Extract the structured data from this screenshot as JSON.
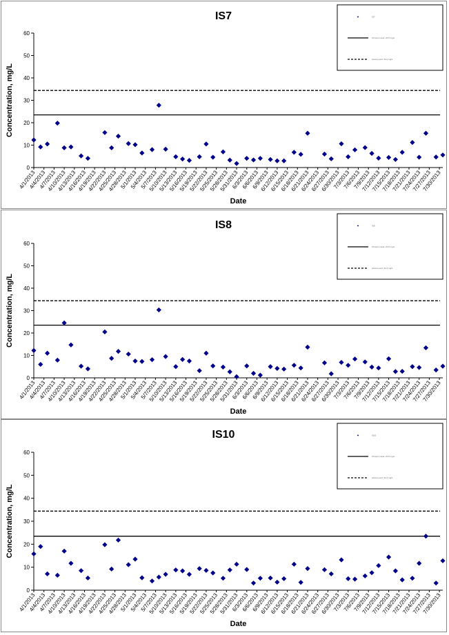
{
  "chart_data": [
    {
      "type": "scatter",
      "title": "IS7",
      "xlabel": "Date",
      "ylabel": "Concentration, mg/L",
      "ylim": [
        0,
        60
      ],
      "yticks": [
        0,
        10,
        20,
        30,
        40,
        50,
        60
      ],
      "xticks": [
        "4/1/2013",
        "4/4/2013",
        "4/7/2013",
        "4/10/2013",
        "4/13/2013",
        "4/16/2013",
        "4/19/2013",
        "4/22/2013",
        "4/25/2013",
        "4/28/2013",
        "5/1/2013",
        "5/4/2013",
        "5/7/2013",
        "5/10/2013",
        "5/13/2013",
        "5/16/2013",
        "5/19/2013",
        "5/22/2013",
        "5/25/2013",
        "5/28/2013",
        "5/31/2013",
        "6/3/2013",
        "6/6/2013",
        "6/9/2013",
        "6/12/2013",
        "6/15/2013",
        "6/18/2013",
        "6/21/2013",
        "6/24/2013",
        "6/27/2013",
        "6/30/2013",
        "7/3/2013",
        "7/6/2013",
        "7/9/2013",
        "7/12/2013",
        "7/15/2013",
        "7/18/2013",
        "7/21/2013",
        "7/24/2013",
        "7/27/2013",
        "7/30/2013"
      ],
      "lines": [
        {
          "name": "Chronic Level: 23.5 mg/L",
          "value": 23.5,
          "style": "solid"
        },
        {
          "name": "Acute Level: 34.4 mg/L",
          "value": 34.4,
          "style": "dashed"
        }
      ],
      "series": [
        {
          "name": "IS7",
          "x": [
            "2013-04-01",
            "2013-04-03",
            "2013-04-05",
            "2013-04-08",
            "2013-04-10",
            "2013-04-12",
            "2013-04-15",
            "2013-04-17",
            "2013-04-22",
            "2013-04-24",
            "2013-04-26",
            "2013-04-29",
            "2013-05-01",
            "2013-05-03",
            "2013-05-06",
            "2013-05-08",
            "2013-05-10",
            "2013-05-13",
            "2013-05-15",
            "2013-05-17",
            "2013-05-20",
            "2013-05-22",
            "2013-05-24",
            "2013-05-27",
            "2013-05-29",
            "2013-05-31",
            "2013-06-03",
            "2013-06-05",
            "2013-06-07",
            "2013-06-10",
            "2013-06-12",
            "2013-06-14",
            "2013-06-17",
            "2013-06-19",
            "2013-06-21",
            "2013-06-26",
            "2013-06-28",
            "2013-07-01",
            "2013-07-03",
            "2013-07-05",
            "2013-07-08",
            "2013-07-10",
            "2013-07-12",
            "2013-07-15",
            "2013-07-17",
            "2013-07-19",
            "2013-07-22",
            "2013-07-24",
            "2013-07-26",
            "2013-07-29",
            "2013-07-31"
          ],
          "values": [
            12.3,
            9.2,
            10.5,
            19.8,
            8.8,
            9.2,
            5.2,
            4.1,
            15.6,
            8.8,
            14.0,
            10.7,
            10.2,
            6.5,
            8.0,
            27.8,
            8.2,
            4.8,
            3.8,
            3.2,
            4.8,
            10.5,
            4.6,
            7.0,
            3.3,
            1.8,
            4.1,
            3.4,
            4.1,
            3.6,
            3.0,
            3.0,
            6.8,
            5.9,
            15.3,
            6.0,
            3.9,
            10.6,
            4.8,
            7.9,
            8.9,
            6.3,
            4.2,
            4.5,
            3.6,
            6.8,
            11.2,
            4.6,
            15.3,
            4.7,
            5.6
          ]
        }
      ]
    },
    {
      "type": "scatter",
      "title": "IS8",
      "xlabel": "Date",
      "ylabel": "Concentration, mg/L",
      "ylim": [
        0,
        60
      ],
      "yticks": [
        0,
        10,
        20,
        30,
        40,
        50,
        60
      ],
      "xticks": [
        "4/1/2013",
        "4/4/2013",
        "4/7/2013",
        "4/10/2013",
        "4/13/2013",
        "4/16/2013",
        "4/19/2013",
        "4/22/2013",
        "4/25/2013",
        "4/28/2013",
        "5/1/2013",
        "5/4/2013",
        "5/7/2013",
        "5/10/2013",
        "5/13/2013",
        "5/16/2013",
        "5/19/2013",
        "5/22/2013",
        "5/25/2013",
        "5/28/2013",
        "5/31/2013",
        "6/3/2013",
        "6/6/2013",
        "6/9/2013",
        "6/12/2013",
        "6/15/2013",
        "6/18/2013",
        "6/21/2013",
        "6/24/2013",
        "6/27/2013",
        "6/30/2013",
        "7/3/2013",
        "7/6/2013",
        "7/9/2013",
        "7/12/2013",
        "7/15/2013",
        "7/18/2013",
        "7/21/2013",
        "7/24/2013",
        "7/27/2013",
        "7/30/2013"
      ],
      "lines": [
        {
          "name": "Chronic Level: 23.5 mg/L",
          "value": 23.5,
          "style": "solid"
        },
        {
          "name": "Acute Level: 34.4 mg/L",
          "value": 34.4,
          "style": "dashed"
        }
      ],
      "series": [
        {
          "name": "IS8",
          "x": [
            "2013-04-01",
            "2013-04-03",
            "2013-04-05",
            "2013-04-08",
            "2013-04-10",
            "2013-04-12",
            "2013-04-15",
            "2013-04-17",
            "2013-04-22",
            "2013-04-24",
            "2013-04-26",
            "2013-04-29",
            "2013-05-01",
            "2013-05-03",
            "2013-05-06",
            "2013-05-08",
            "2013-05-10",
            "2013-05-13",
            "2013-05-15",
            "2013-05-17",
            "2013-05-20",
            "2013-05-22",
            "2013-05-24",
            "2013-05-27",
            "2013-05-29",
            "2013-05-31",
            "2013-06-03",
            "2013-06-05",
            "2013-06-07",
            "2013-06-10",
            "2013-06-12",
            "2013-06-14",
            "2013-06-17",
            "2013-06-19",
            "2013-06-21",
            "2013-06-26",
            "2013-06-28",
            "2013-07-01",
            "2013-07-03",
            "2013-07-05",
            "2013-07-08",
            "2013-07-10",
            "2013-07-12",
            "2013-07-15",
            "2013-07-17",
            "2013-07-19",
            "2013-07-22",
            "2013-07-24",
            "2013-07-26",
            "2013-07-29",
            "2013-07-31"
          ],
          "values": [
            12.2,
            6.0,
            11.0,
            7.9,
            24.5,
            14.7,
            5.2,
            4.0,
            20.5,
            8.7,
            11.8,
            10.6,
            7.5,
            7.3,
            8.1,
            30.3,
            9.5,
            5.0,
            8.2,
            7.5,
            3.2,
            11.0,
            5.3,
            4.8,
            2.7,
            0.5,
            5.3,
            2.0,
            1.2,
            5.0,
            4.2,
            3.9,
            5.6,
            4.4,
            13.7,
            6.7,
            1.8,
            6.9,
            5.6,
            8.4,
            7.1,
            4.8,
            4.4,
            8.5,
            2.8,
            2.9,
            5.0,
            4.6,
            13.4,
            3.5,
            5.2
          ]
        }
      ]
    },
    {
      "type": "scatter",
      "title": "IS10",
      "xlabel": "Date",
      "ylabel": "Concentration, mg/L",
      "ylim": [
        0,
        60
      ],
      "yticks": [
        0,
        10,
        20,
        30,
        40,
        50,
        60
      ],
      "xticks": [
        "4/1/2013",
        "4/4/2013",
        "4/7/2013",
        "4/10/2013",
        "4/13/2013",
        "4/16/2013",
        "4/19/2013",
        "4/22/2013",
        "4/25/2013",
        "4/28/2013",
        "5/1/2013",
        "5/4/2013",
        "5/7/2013",
        "5/10/2013",
        "5/13/2013",
        "5/16/2013",
        "5/19/2013",
        "5/22/2013",
        "5/25/2013",
        "5/28/2013",
        "5/31/2013",
        "6/3/2013",
        "6/6/2013",
        "6/9/2013",
        "6/12/2013",
        "6/15/2013",
        "6/18/2013",
        "6/21/2013",
        "6/24/2013",
        "6/27/2013",
        "6/30/2013",
        "7/3/2013",
        "7/6/2013",
        "7/9/2013",
        "7/12/2013",
        "7/15/2013",
        "7/18/2013",
        "7/21/2013",
        "7/24/2013",
        "7/27/2013",
        "7/30/2013"
      ],
      "lines": [
        {
          "name": "Chronic Level: 23.5 mg/L",
          "value": 23.5,
          "style": "solid"
        },
        {
          "name": "Acute Level: 34.4 mg/L",
          "value": 34.4,
          "style": "dashed"
        }
      ],
      "series": [
        {
          "name": "IS10",
          "x": [
            "2013-04-01",
            "2013-04-03",
            "2013-04-05",
            "2013-04-08",
            "2013-04-10",
            "2013-04-12",
            "2013-04-15",
            "2013-04-17",
            "2013-04-22",
            "2013-04-24",
            "2013-04-26",
            "2013-04-29",
            "2013-05-01",
            "2013-05-03",
            "2013-05-06",
            "2013-05-08",
            "2013-05-10",
            "2013-05-13",
            "2013-05-15",
            "2013-05-17",
            "2013-05-20",
            "2013-05-22",
            "2013-05-24",
            "2013-05-27",
            "2013-05-29",
            "2013-05-31",
            "2013-06-03",
            "2013-06-05",
            "2013-06-07",
            "2013-06-10",
            "2013-06-12",
            "2013-06-14",
            "2013-06-17",
            "2013-06-19",
            "2013-06-21",
            "2013-06-26",
            "2013-06-28",
            "2013-07-01",
            "2013-07-03",
            "2013-07-05",
            "2013-07-08",
            "2013-07-10",
            "2013-07-12",
            "2013-07-15",
            "2013-07-17",
            "2013-07-19",
            "2013-07-22",
            "2013-07-24",
            "2013-07-26",
            "2013-07-29",
            "2013-07-31"
          ],
          "values": [
            15.8,
            19.0,
            7.1,
            6.5,
            17.0,
            11.7,
            8.5,
            5.3,
            19.8,
            9.2,
            21.8,
            11.1,
            13.5,
            5.4,
            4.0,
            5.7,
            6.9,
            8.8,
            8.4,
            6.9,
            9.4,
            8.6,
            7.5,
            5.2,
            8.8,
            11.3,
            9.0,
            3.1,
            5.2,
            5.3,
            3.5,
            5.0,
            11.3,
            3.4,
            9.4,
            8.9,
            7.1,
            13.2,
            5.0,
            4.8,
            6.2,
            7.6,
            10.7,
            14.4,
            8.4,
            4.5,
            5.2,
            11.7,
            23.5,
            3.1,
            12.8
          ]
        }
      ]
    }
  ]
}
